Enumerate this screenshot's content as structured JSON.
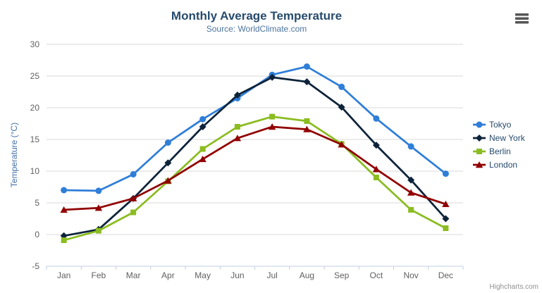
{
  "header": {
    "title": "Monthly Average Temperature",
    "subtitle": "Source: WorldClimate.com"
  },
  "credits": {
    "label": "Highcharts.com"
  },
  "export_menu": {
    "icon": "hamburger-menu-icon"
  },
  "colors": {
    "title": "#274b6d",
    "subtitle": "#4d759e",
    "axis_labels": "#606060",
    "yaxis_title": "#4572a7",
    "gridline": "#d8d8d8",
    "axis_line": "#c0d0e0",
    "legend_text": "#274b6d",
    "credits_text": "#909090"
  },
  "chart_data": {
    "type": "line",
    "title": "Monthly Average Temperature",
    "subtitle": "Source: WorldClimate.com",
    "xlabel": "",
    "ylabel": "Temperature (°C)",
    "categories": [
      "Jan",
      "Feb",
      "Mar",
      "Apr",
      "May",
      "Jun",
      "Jul",
      "Aug",
      "Sep",
      "Oct",
      "Nov",
      "Dec"
    ],
    "ylim": [
      -5,
      30
    ],
    "yticks": [
      -5,
      0,
      5,
      10,
      15,
      20,
      25,
      30
    ],
    "grid": true,
    "legend_position": "right",
    "series": [
      {
        "name": "Tokyo",
        "color": "#2f7ed8",
        "marker": "circle",
        "values": [
          7.0,
          6.9,
          9.5,
          14.5,
          18.2,
          21.5,
          25.2,
          26.5,
          23.3,
          18.3,
          13.9,
          9.6
        ]
      },
      {
        "name": "New York",
        "color": "#0d233a",
        "marker": "diamond",
        "values": [
          -0.2,
          0.8,
          5.7,
          11.3,
          17.0,
          22.0,
          24.8,
          24.1,
          20.1,
          14.1,
          8.6,
          2.5
        ]
      },
      {
        "name": "Berlin",
        "color": "#8bbc21",
        "marker": "square",
        "values": [
          -0.9,
          0.6,
          3.5,
          8.4,
          13.5,
          17.0,
          18.6,
          17.9,
          14.3,
          9.0,
          3.9,
          1.0
        ]
      },
      {
        "name": "London",
        "color": "#910000",
        "marker": "triangle",
        "values": [
          3.9,
          4.2,
          5.7,
          8.5,
          11.9,
          15.2,
          17.0,
          16.6,
          14.2,
          10.3,
          6.6,
          4.8
        ]
      }
    ]
  }
}
